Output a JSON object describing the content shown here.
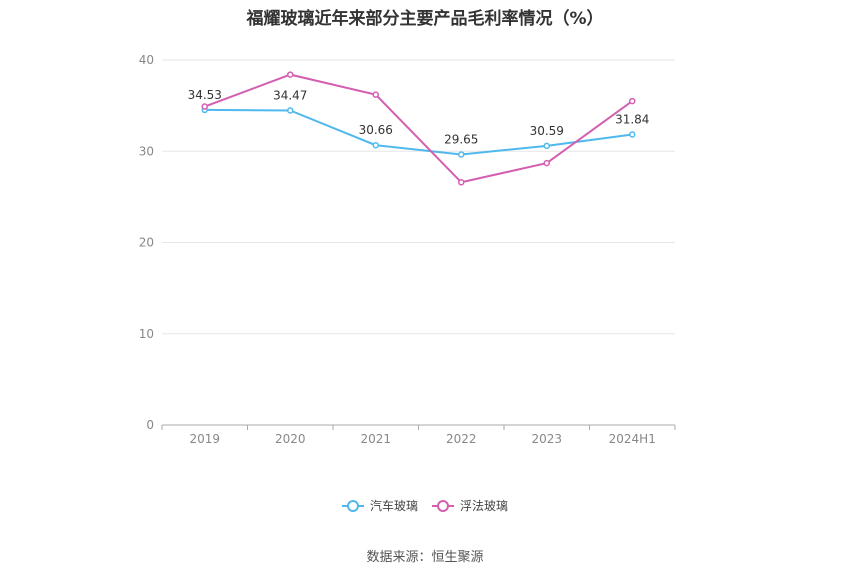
{
  "chart_data": {
    "type": "line",
    "title": "福耀玻璃近年来部分主要产品毛利率情况（%）",
    "categories": [
      "2019",
      "2020",
      "2021",
      "2022",
      "2023",
      "2024H1"
    ],
    "ylim": [
      0,
      40
    ],
    "yticks": [
      0,
      10,
      20,
      30,
      40
    ],
    "grid": true,
    "legend_position": "bottom-center",
    "series": [
      {
        "name": "汽车玻璃",
        "color": "#4fb8ec",
        "values": [
          34.53,
          34.47,
          30.66,
          29.65,
          30.59,
          31.84
        ],
        "labels": [
          "34.53",
          "34.47",
          "30.66",
          "29.65",
          "30.59",
          "31.84"
        ]
      },
      {
        "name": "浮法玻璃",
        "color": "#d35fb0",
        "values": [
          34.9,
          38.4,
          36.2,
          26.6,
          28.7,
          35.5
        ]
      }
    ],
    "source": "数据来源：恒生聚源"
  }
}
